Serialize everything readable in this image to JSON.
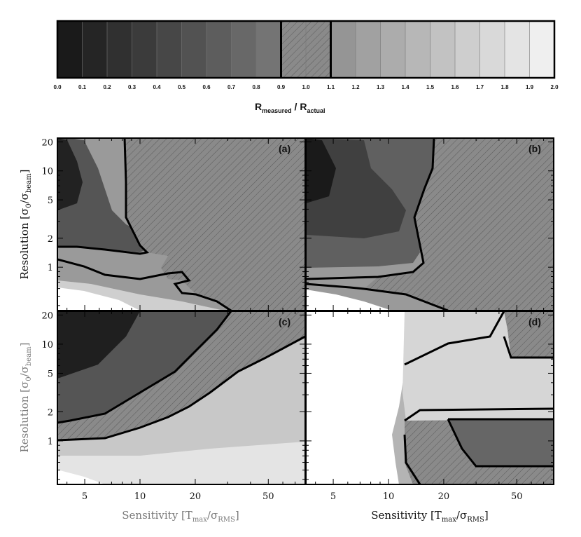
{
  "chart_data": {
    "type": "heatmap",
    "colorbar": {
      "ticks": [
        "0.0",
        "0.1",
        "0.2",
        "0.3",
        "0.4",
        "0.5",
        "0.6",
        "0.7",
        "0.8",
        "0.9",
        "1.0",
        "1.1",
        "1.2",
        "1.3",
        "1.4",
        "1.5",
        "1.6",
        "1.7",
        "1.8",
        "1.9",
        "2.0"
      ],
      "highlight_range": [
        0.9,
        1.1
      ],
      "label_main_1": "R",
      "label_sub_1": "measured",
      "label_sep": " / ",
      "label_main_2": "R",
      "label_sub_2": "actual"
    },
    "x_axis": {
      "scale": "log",
      "tick_labels": [
        "5",
        "10",
        "20",
        "50"
      ],
      "title_main": "Sensitivity [T",
      "title_sub1": "max",
      "title_mid": "/σ",
      "title_sub2": "RMS",
      "title_end": "]"
    },
    "y_axis": {
      "scale": "log",
      "tick_labels": [
        "1",
        "2",
        "5",
        "10",
        "20"
      ],
      "title_main": "Resolution [σ",
      "title_sub1": "0",
      "title_mid": "/σ",
      "title_sub2": "beam",
      "title_end": "]"
    },
    "panels": [
      {
        "id": "a",
        "label": "(a)"
      },
      {
        "id": "b",
        "label": "(b)"
      },
      {
        "id": "c",
        "label": "(c)"
      },
      {
        "id": "d",
        "label": "(d)"
      }
    ]
  }
}
